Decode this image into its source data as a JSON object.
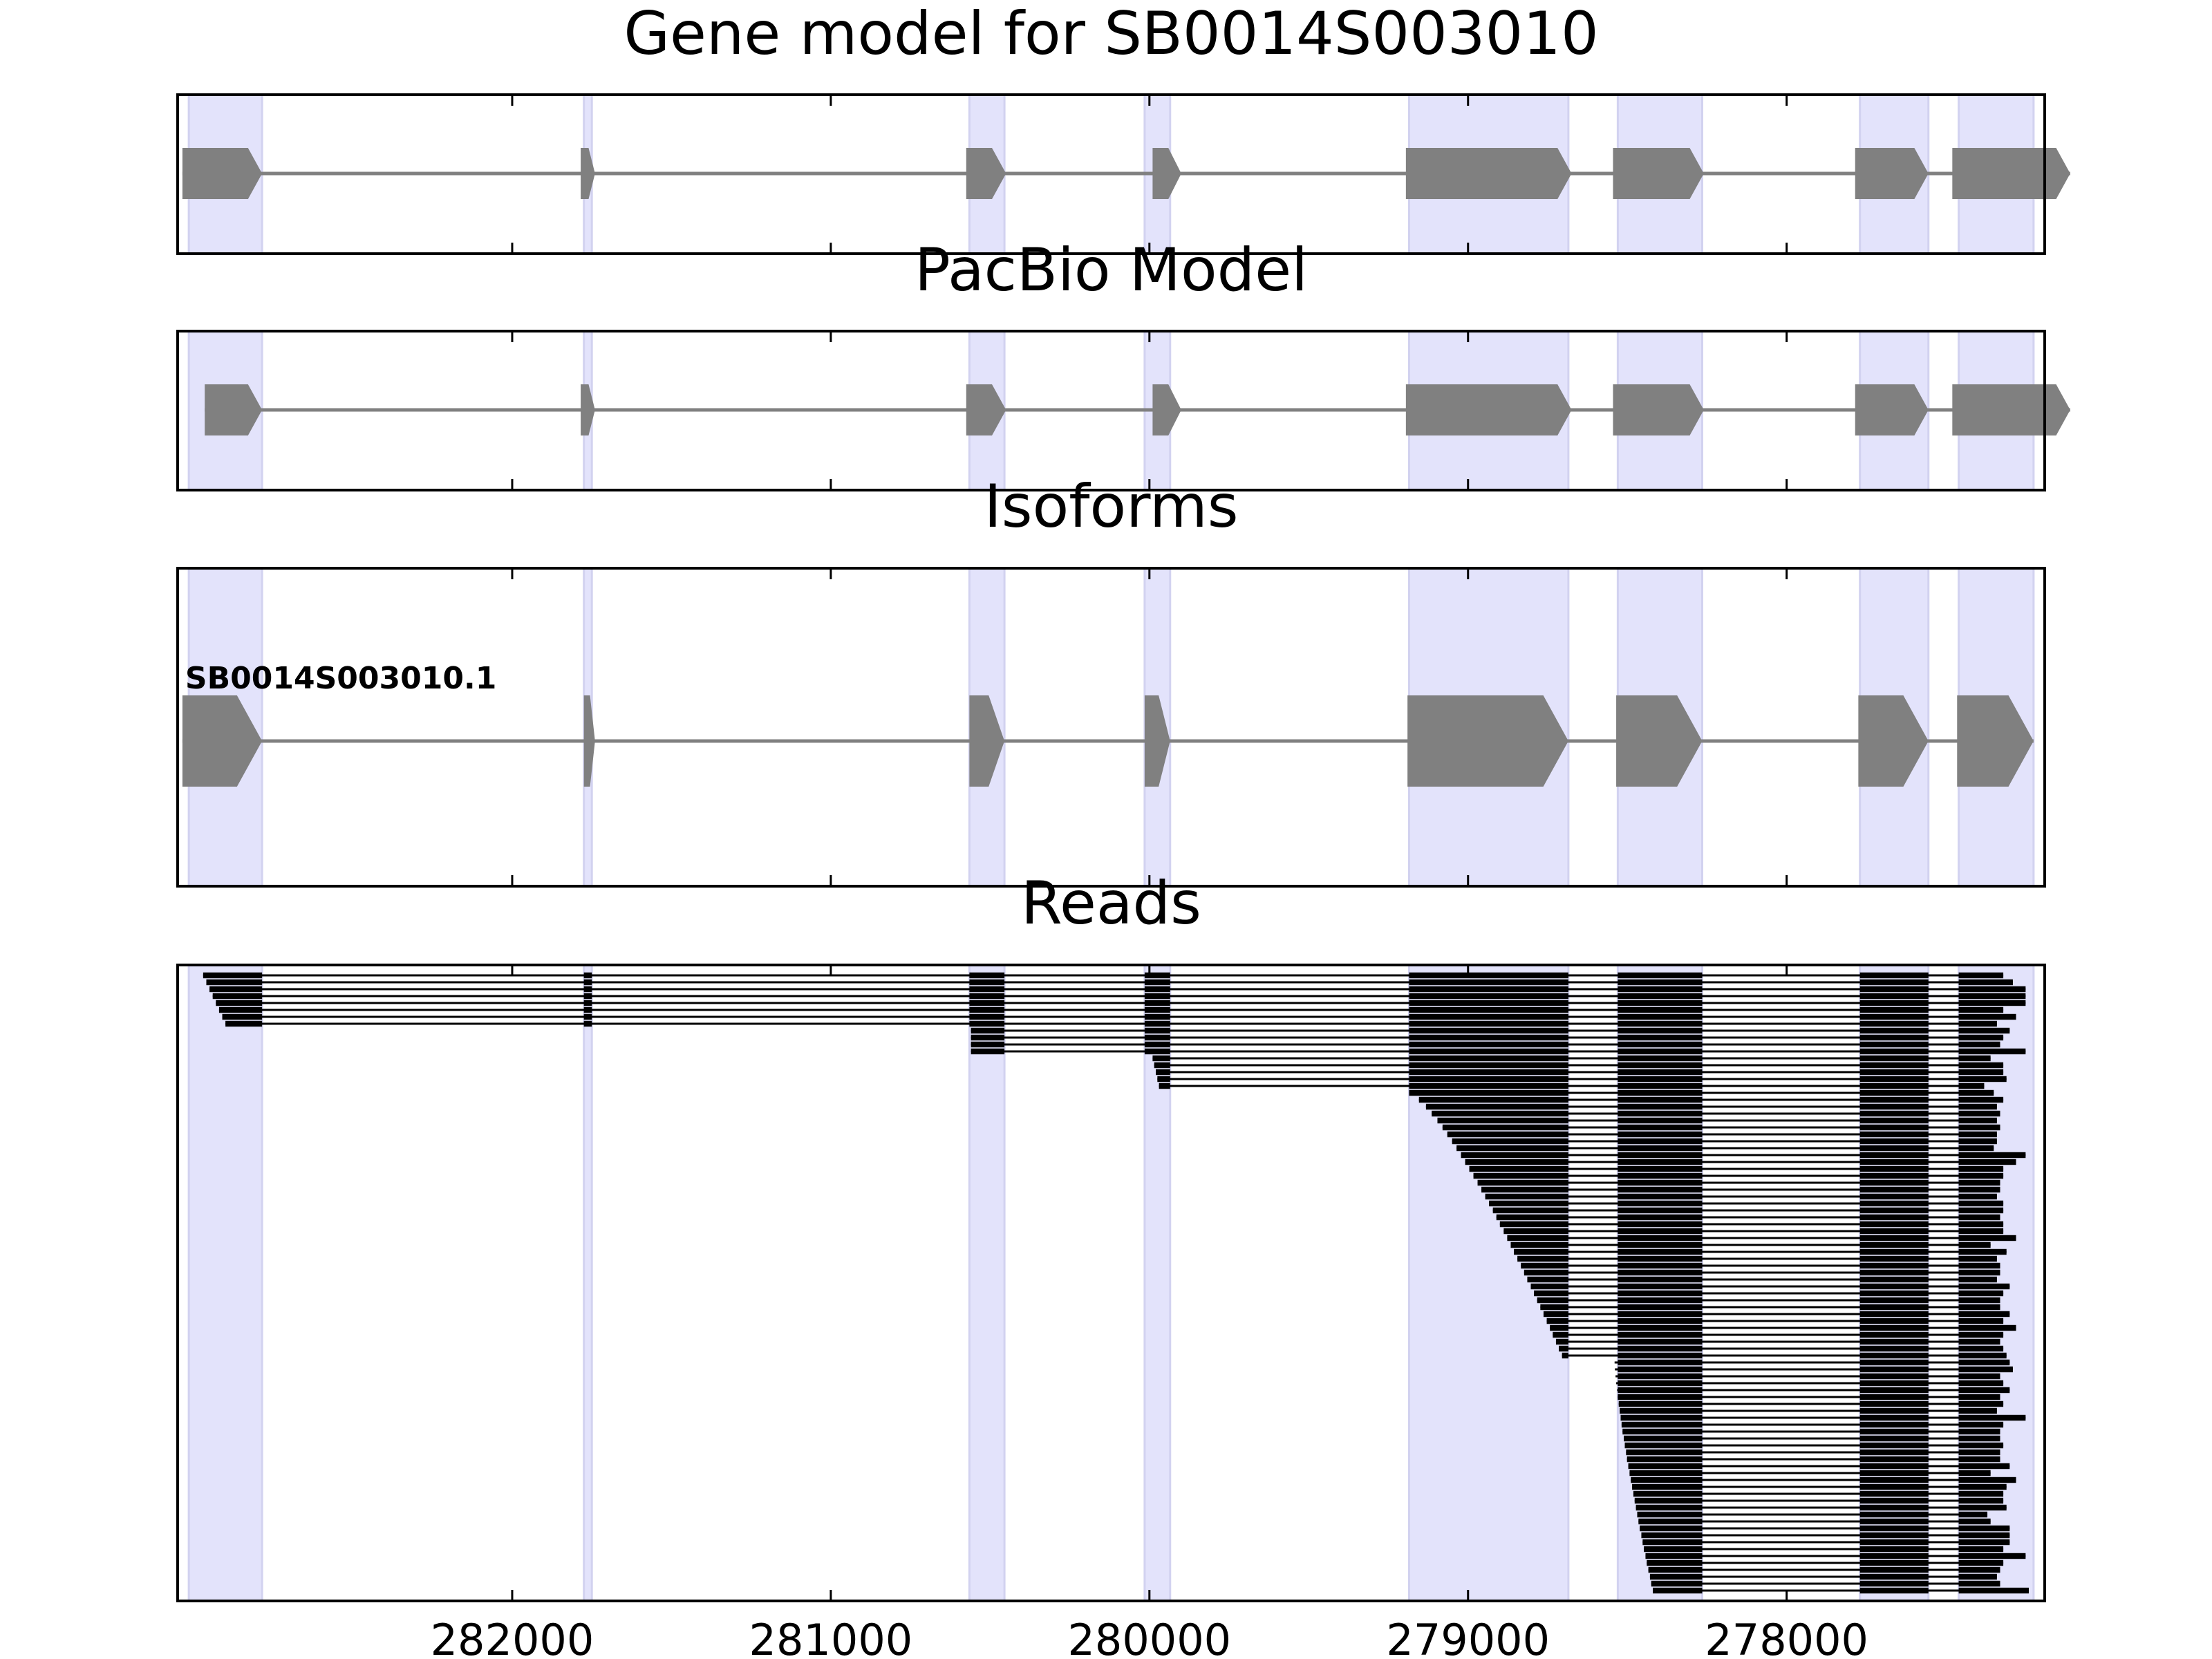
{
  "chart_data": {
    "type": "gene-structure",
    "x_reversed": true,
    "xlim": [
      283050,
      277190
    ],
    "x_ticks": [
      282000,
      281000,
      280000,
      279000,
      278000
    ],
    "x_tick_labels": [
      "282000",
      "281000",
      "280000",
      "279000",
      "278000"
    ],
    "colors": {
      "exon_highlight": "#e3e3fb",
      "gene_model": "#808080",
      "intron_line": "#808080",
      "read": "#000000",
      "frame": "#000000"
    },
    "exon_regions": [
      [
        283015,
        282785
      ],
      [
        281775,
        281750
      ],
      [
        280565,
        280455
      ],
      [
        280015,
        279935
      ],
      [
        279185,
        278685
      ],
      [
        278530,
        278265
      ],
      [
        277770,
        277555
      ],
      [
        277460,
        277225
      ]
    ],
    "panels": [
      {
        "id": "gene-model",
        "title": "Gene model for SB0014S003010",
        "models": [
          {
            "label": "",
            "exons": [
              [
                283035,
                282785
              ],
              [
                281785,
                281740
              ],
              [
                280575,
                280450
              ],
              [
                279990,
                279900
              ],
              [
                279195,
                278675
              ],
              [
                278545,
                278260
              ],
              [
                277785,
                277555
              ],
              [
                277480,
                277110
              ]
            ]
          }
        ]
      },
      {
        "id": "pacbio-model",
        "title": "PacBio Model",
        "models": [
          {
            "label": "",
            "exons": [
              [
                282965,
                282785
              ],
              [
                281785,
                281740
              ],
              [
                280575,
                280450
              ],
              [
                279990,
                279900
              ],
              [
                279195,
                278675
              ],
              [
                278545,
                278260
              ],
              [
                277785,
                277555
              ],
              [
                277480,
                277110
              ]
            ]
          }
        ]
      },
      {
        "id": "isoforms",
        "title": "Isoforms",
        "models": [
          {
            "label": "SB0014S003010.1",
            "exons": [
              [
                283035,
                282785
              ],
              [
                281775,
                281740
              ],
              [
                280565,
                280455
              ],
              [
                280015,
                279935
              ],
              [
                279190,
                278685
              ],
              [
                278535,
                278265
              ],
              [
                277775,
                277555
              ],
              [
                277465,
                277225
              ]
            ]
          }
        ]
      },
      {
        "id": "reads",
        "title": "Reads",
        "read_count": 90,
        "read_3prime_ends": [
          277320,
          277290,
          277250,
          277250,
          277250,
          277320,
          277280,
          277340,
          277300,
          277320,
          277330,
          277250,
          277360,
          277320,
          277320,
          277310,
          277380,
          277350,
          277320,
          277340,
          277330,
          277340,
          277330,
          277340,
          277340,
          277350,
          277250,
          277280,
          277320,
          277320,
          277330,
          277330,
          277340,
          277320,
          277320,
          277330,
          277320,
          277320,
          277280,
          277360,
          277310,
          277340,
          277330,
          277330,
          277340,
          277300,
          277320,
          277330,
          277330,
          277300,
          277320,
          277280,
          277320,
          277330,
          277320,
          277310,
          277300,
          277290,
          277330,
          277320,
          277300,
          277330,
          277320,
          277340,
          277250,
          277320,
          277330,
          277330,
          277320,
          277330,
          277330,
          277300,
          277360,
          277280,
          277310,
          277320,
          277320,
          277310,
          277370,
          277360,
          277300,
          277300,
          277300,
          277320,
          277250,
          277320,
          277330,
          277340,
          277330,
          277240
        ]
      }
    ]
  }
}
